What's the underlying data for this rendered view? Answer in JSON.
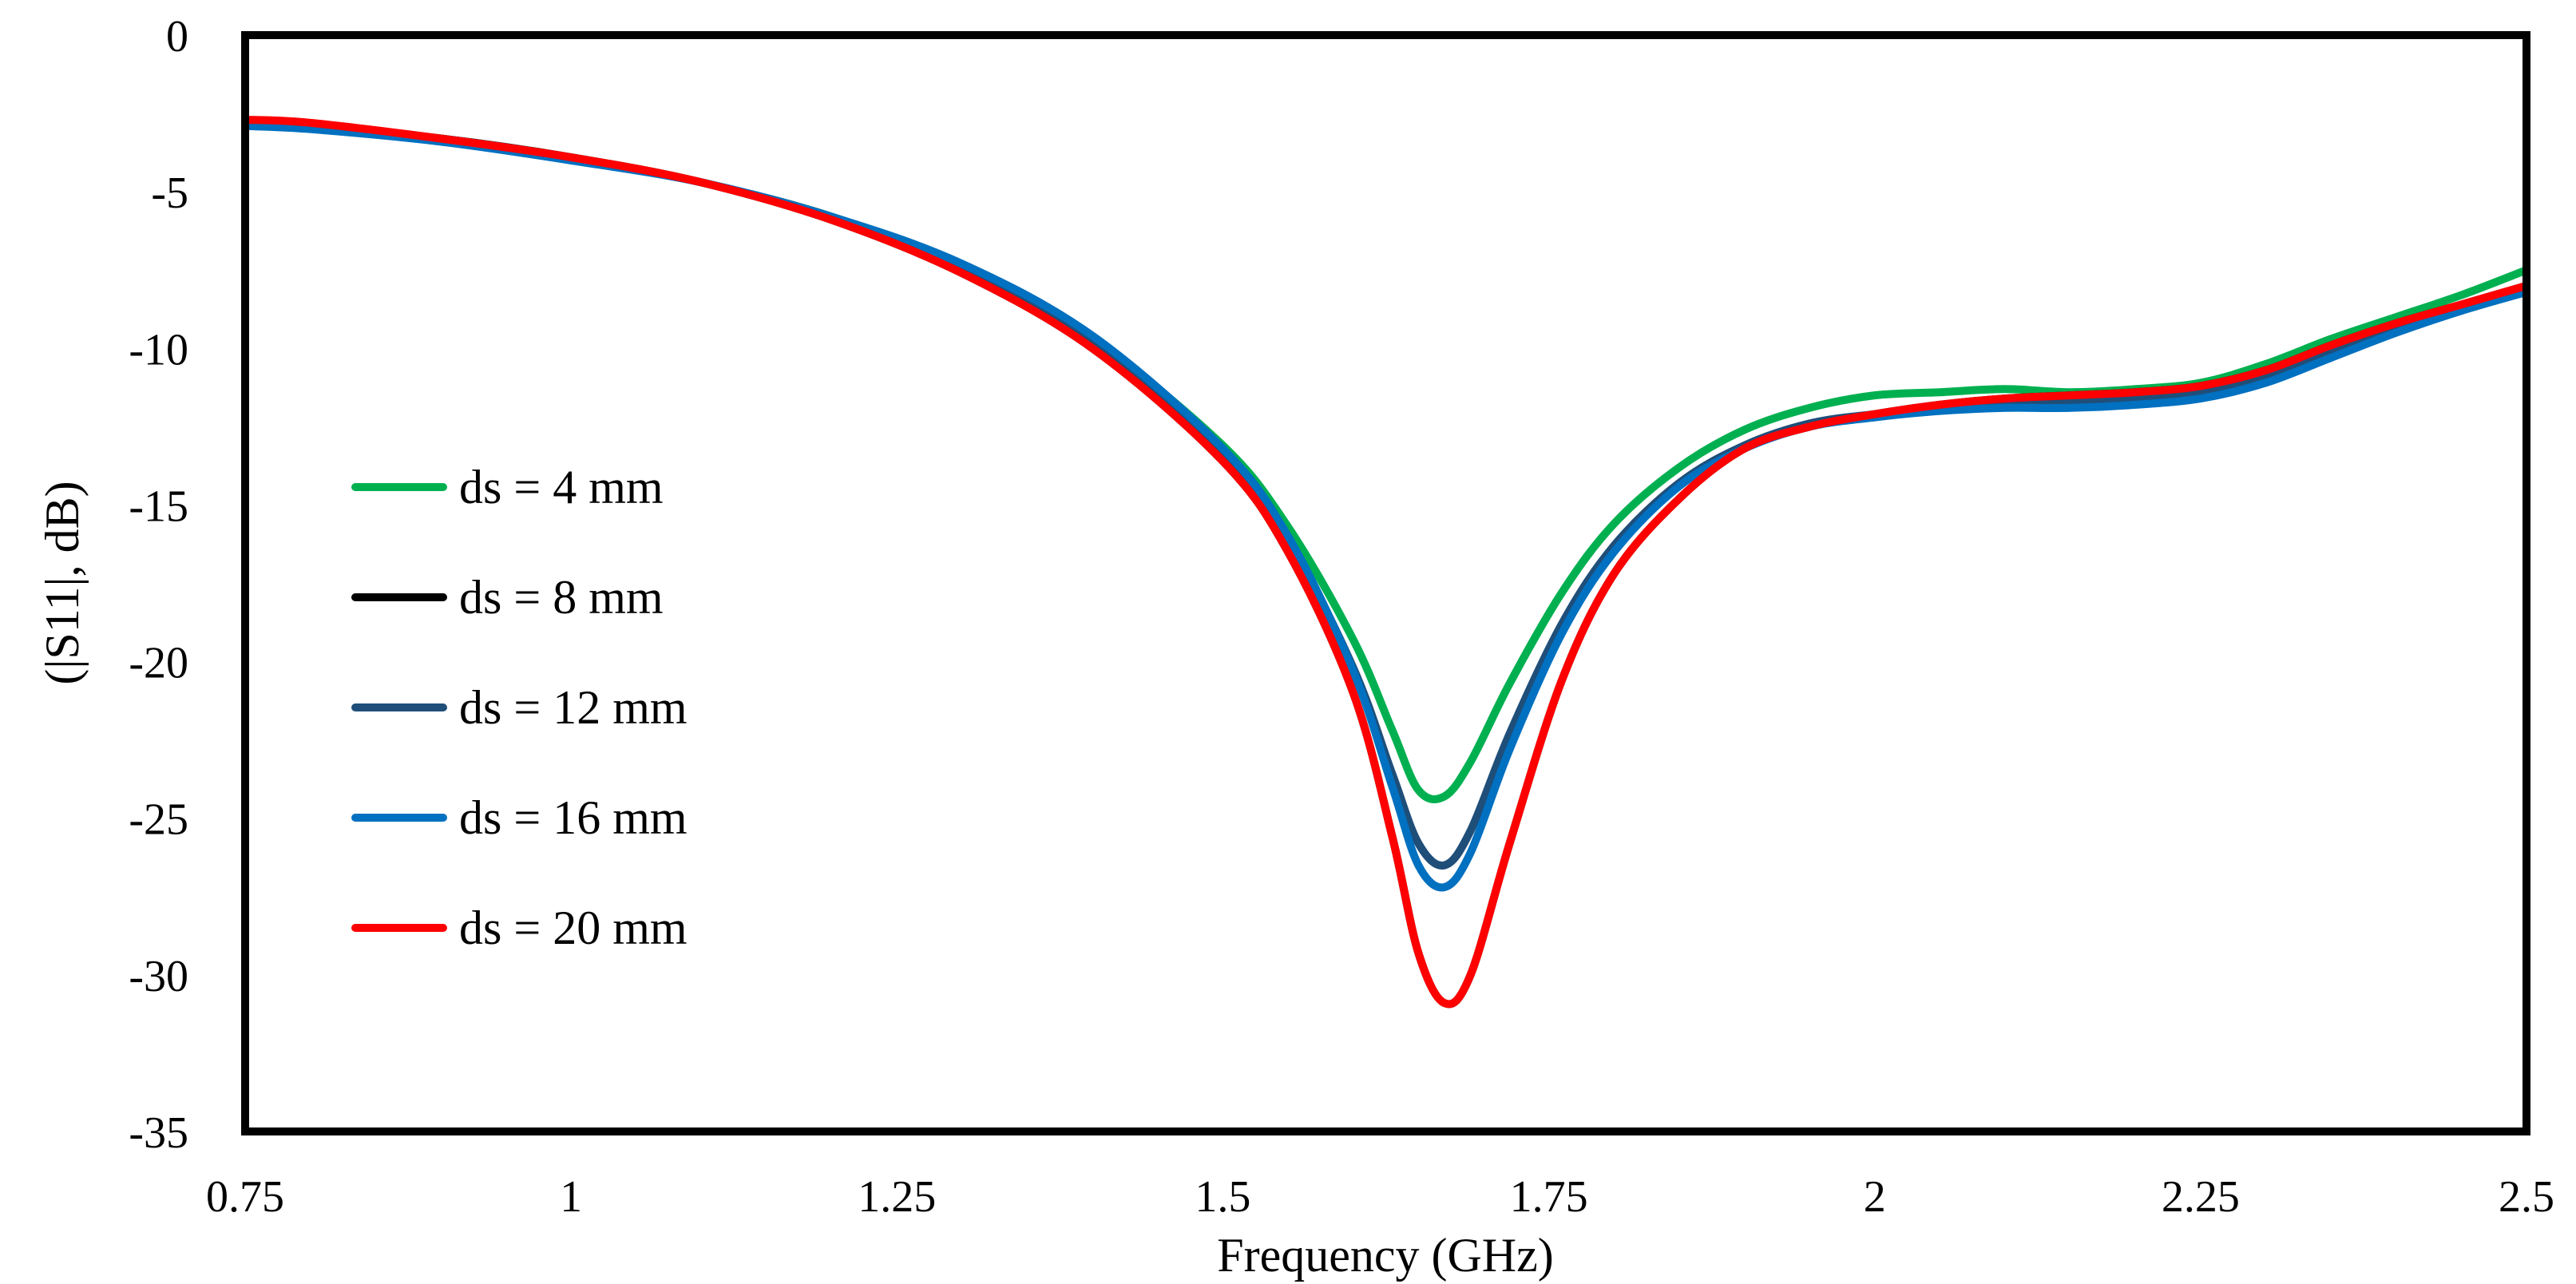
{
  "chart_data": {
    "type": "line",
    "title": "",
    "xlabel": "Frequency (GHz)",
    "ylabel": "(|S11|, dB)",
    "xlim": [
      0.75,
      2.5
    ],
    "ylim": [
      -35,
      0
    ],
    "xticks": [
      0.75,
      1,
      1.25,
      1.5,
      1.75,
      2,
      2.25,
      2.5
    ],
    "xtick_labels": [
      "0.75",
      "1",
      "1.25",
      "1.5",
      "1.75",
      "2",
      "2.25",
      "2.5"
    ],
    "yticks": [
      0,
      -5,
      -10,
      -15,
      -20,
      -25,
      -30,
      -35
    ],
    "ytick_labels": [
      "0",
      "-5",
      "-10",
      "-15",
      "-20",
      "-25",
      "-30",
      "-35"
    ],
    "grid": false,
    "legend_position": "left",
    "series": [
      {
        "name": "ds = 4 mm",
        "color": "#00b050",
        "x": [
          0.75,
          0.8,
          0.9,
          1.0,
          1.1,
          1.2,
          1.3,
          1.4,
          1.5,
          1.55,
          1.6,
          1.63,
          1.65,
          1.67,
          1.69,
          1.72,
          1.76,
          1.8,
          1.85,
          1.9,
          1.95,
          2.0,
          2.05,
          2.1,
          2.15,
          2.2,
          2.25,
          2.3,
          2.35,
          2.4,
          2.45,
          2.5
        ],
        "values": [
          -2.8,
          -2.9,
          -3.3,
          -3.9,
          -4.7,
          -5.8,
          -7.4,
          -9.7,
          -13.1,
          -15.7,
          -19.3,
          -22.2,
          -24.1,
          -24.3,
          -23.2,
          -20.7,
          -17.8,
          -15.6,
          -13.8,
          -12.6,
          -11.9,
          -11.5,
          -11.4,
          -11.3,
          -11.4,
          -11.3,
          -11.1,
          -10.5,
          -9.7,
          -9.0,
          -8.3,
          -7.5
        ]
      },
      {
        "name": "ds = 8 mm",
        "color": "#000000",
        "x": [
          0.75,
          0.8,
          0.9,
          1.0,
          1.1,
          1.2,
          1.3,
          1.4,
          1.5,
          1.55,
          1.6,
          1.63,
          1.65,
          1.67,
          1.69,
          1.72,
          1.76,
          1.8,
          1.85,
          1.9,
          1.95,
          2.0,
          2.05,
          2.1,
          2.15,
          2.2,
          2.25,
          2.3,
          2.35,
          2.4,
          2.45,
          2.5
        ],
        "values": [
          -2.8,
          -2.9,
          -3.3,
          -3.9,
          -4.7,
          -5.9,
          -7.6,
          -10.0,
          -13.6,
          -16.5,
          -21.0,
          -25.6,
          -29.3,
          -30.9,
          -30.0,
          -25.8,
          -20.6,
          -17.2,
          -14.8,
          -13.2,
          -12.5,
          -12.1,
          -11.8,
          -11.6,
          -11.5,
          -11.4,
          -11.2,
          -10.7,
          -9.9,
          -9.2,
          -8.6,
          -8.0
        ]
      },
      {
        "name": "ds = 12 mm",
        "color": "#1f4e79",
        "x": [
          0.75,
          0.8,
          0.9,
          1.0,
          1.1,
          1.2,
          1.3,
          1.4,
          1.5,
          1.55,
          1.6,
          1.63,
          1.65,
          1.67,
          1.69,
          1.72,
          1.76,
          1.8,
          1.85,
          1.9,
          1.95,
          2.0,
          2.05,
          2.1,
          2.15,
          2.2,
          2.25,
          2.3,
          2.35,
          2.4,
          2.45,
          2.5
        ],
        "values": [
          -2.8,
          -2.9,
          -3.3,
          -3.9,
          -4.7,
          -5.8,
          -7.4,
          -9.8,
          -13.3,
          -16.1,
          -20.2,
          -23.6,
          -25.8,
          -26.5,
          -25.4,
          -22.3,
          -18.8,
          -16.3,
          -14.3,
          -13.1,
          -12.4,
          -12.1,
          -11.9,
          -11.8,
          -11.7,
          -11.6,
          -11.4,
          -10.9,
          -10.1,
          -9.3,
          -8.7,
          -8.1
        ]
      },
      {
        "name": "ds = 16 mm",
        "color": "#0070c0",
        "x": [
          0.75,
          0.8,
          0.9,
          1.0,
          1.1,
          1.2,
          1.3,
          1.4,
          1.5,
          1.55,
          1.6,
          1.63,
          1.65,
          1.67,
          1.69,
          1.72,
          1.76,
          1.8,
          1.85,
          1.9,
          1.95,
          2.0,
          2.05,
          2.1,
          2.15,
          2.2,
          2.25,
          2.3,
          2.35,
          2.4,
          2.45,
          2.5
        ],
        "values": [
          -2.9,
          -3.0,
          -3.4,
          -4.0,
          -4.7,
          -5.8,
          -7.3,
          -9.6,
          -13.2,
          -16.0,
          -20.3,
          -24.0,
          -26.5,
          -27.2,
          -26.1,
          -22.8,
          -19.1,
          -16.5,
          -14.4,
          -13.2,
          -12.5,
          -12.2,
          -12.0,
          -11.9,
          -11.9,
          -11.8,
          -11.6,
          -11.1,
          -10.3,
          -9.5,
          -8.8,
          -8.2
        ]
      },
      {
        "name": "ds = 20 mm",
        "color": "#ff0000",
        "x": [
          0.75,
          0.8,
          0.9,
          1.0,
          1.1,
          1.2,
          1.3,
          1.4,
          1.5,
          1.55,
          1.6,
          1.63,
          1.65,
          1.67,
          1.69,
          1.72,
          1.76,
          1.8,
          1.85,
          1.9,
          1.95,
          2.0,
          2.05,
          2.1,
          2.15,
          2.2,
          2.25,
          2.3,
          2.35,
          2.4,
          2.45,
          2.5
        ],
        "values": [
          -2.7,
          -2.8,
          -3.3,
          -3.9,
          -4.7,
          -5.9,
          -7.6,
          -10.0,
          -13.6,
          -16.5,
          -21.0,
          -25.6,
          -29.3,
          -30.9,
          -30.0,
          -25.8,
          -20.6,
          -17.2,
          -14.8,
          -13.2,
          -12.5,
          -12.1,
          -11.8,
          -11.6,
          -11.5,
          -11.4,
          -11.2,
          -10.7,
          -9.9,
          -9.2,
          -8.6,
          -8.0
        ]
      }
    ]
  }
}
